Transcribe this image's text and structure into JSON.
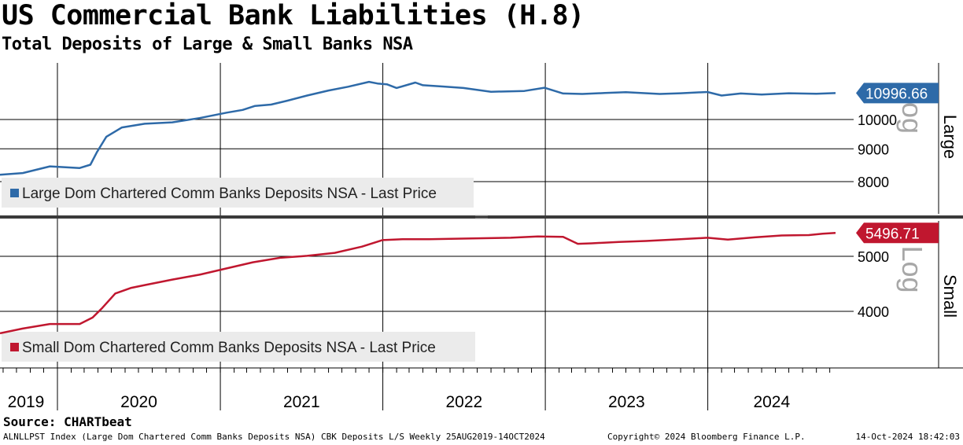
{
  "title": "US Commercial Bank Liabilities (H.8)",
  "subtitle": "Total Deposits of Large & Small Banks NSA",
  "source": "Source: CHARTbeat",
  "footer": {
    "left": "ALNLLPST Index (Large Dom Chartered Comm Banks Deposits NSA) CBK Deposits L/S  Weekly 25AUG2019-14OCT2024",
    "copyright": "Copyright© 2024 Bloomberg Finance L.P.",
    "timestamp": "14-Oct-2024 18:42:03"
  },
  "chart_data": [
    {
      "type": "line",
      "panel_label": "Large",
      "scale": "log",
      "scale_label": "Log",
      "ylim": [
        7500,
        12500
      ],
      "yticks": [
        "8000",
        "9000",
        "10000"
      ],
      "last_value_label": "10996.66",
      "x_range": [
        "2019-08-25",
        "2024-10-14"
      ],
      "x_tick_labels": [
        "2019",
        "2020",
        "2021",
        "2022",
        "2023",
        "2024"
      ],
      "series": [
        {
          "name": "Large Dom Chartered Comm Banks Deposits NSA - Last Price",
          "color": "#2e6aa8",
          "x": [
            "2019-08-25",
            "2019-10-15",
            "2019-12-15",
            "2020-02-20",
            "2020-03-15",
            "2020-03-30",
            "2020-04-20",
            "2020-05-25",
            "2020-07-15",
            "2020-09-15",
            "2020-11-15",
            "2021-01-15",
            "2021-02-20",
            "2021-03-20",
            "2021-04-25",
            "2021-06-01",
            "2021-07-15",
            "2021-09-01",
            "2021-10-15",
            "2021-12-01",
            "2021-12-20",
            "2022-01-10",
            "2022-02-01",
            "2022-03-15",
            "2022-04-01",
            "2022-05-15",
            "2022-07-01",
            "2022-09-01",
            "2022-11-15",
            "2022-12-30",
            "2023-02-10",
            "2023-03-25",
            "2023-05-15",
            "2023-07-01",
            "2023-09-15",
            "2023-11-01",
            "2023-12-31",
            "2024-02-01",
            "2024-03-15",
            "2024-05-01",
            "2024-07-01",
            "2024-09-01",
            "2024-10-14"
          ],
          "values": [
            8200,
            8250,
            8450,
            8400,
            8500,
            8900,
            9400,
            9720,
            9850,
            9900,
            10050,
            10250,
            10350,
            10500,
            10550,
            10700,
            10900,
            11100,
            11250,
            11450,
            11380,
            11350,
            11200,
            11420,
            11310,
            11260,
            11200,
            11050,
            11080,
            11210,
            10980,
            10960,
            11000,
            11030,
            10960,
            10990,
            11040,
            10900,
            10980,
            10940,
            10990,
            10970,
            10996.66
          ]
        }
      ]
    },
    {
      "type": "line",
      "panel_label": "Small",
      "scale": "log",
      "scale_label": "Log",
      "ylim": [
        3350,
        5800
      ],
      "yticks": [
        "4000",
        "5000"
      ],
      "last_value_label": "5496.71",
      "x_range": [
        "2019-08-25",
        "2024-10-14"
      ],
      "x_tick_labels": [
        "2019",
        "2020",
        "2021",
        "2022",
        "2023",
        "2024"
      ],
      "series": [
        {
          "name": "Small Dom Chartered Comm Banks Deposits NSA - Last Price",
          "color": "#c0172f",
          "x": [
            "2019-08-25",
            "2019-10-15",
            "2019-12-15",
            "2020-02-20",
            "2020-03-20",
            "2020-04-10",
            "2020-05-10",
            "2020-06-15",
            "2020-07-15",
            "2020-09-15",
            "2020-11-15",
            "2021-01-15",
            "2021-03-15",
            "2021-05-15",
            "2021-07-15",
            "2021-09-15",
            "2021-11-15",
            "2021-12-31",
            "2022-02-15",
            "2022-04-15",
            "2022-06-15",
            "2022-08-15",
            "2022-10-15",
            "2022-12-15",
            "2023-02-10",
            "2023-03-15",
            "2023-04-15",
            "2023-06-15",
            "2023-08-15",
            "2023-10-15",
            "2023-12-31",
            "2024-02-15",
            "2024-04-15",
            "2024-06-15",
            "2024-08-15",
            "2024-09-15",
            "2024-10-14"
          ],
          "values": [
            3660,
            3730,
            3800,
            3800,
            3900,
            4050,
            4300,
            4400,
            4450,
            4550,
            4640,
            4760,
            4880,
            4970,
            5010,
            5070,
            5200,
            5340,
            5360,
            5360,
            5370,
            5380,
            5390,
            5420,
            5410,
            5260,
            5270,
            5300,
            5320,
            5350,
            5390,
            5350,
            5400,
            5440,
            5450,
            5480,
            5496.71
          ]
        }
      ]
    }
  ]
}
